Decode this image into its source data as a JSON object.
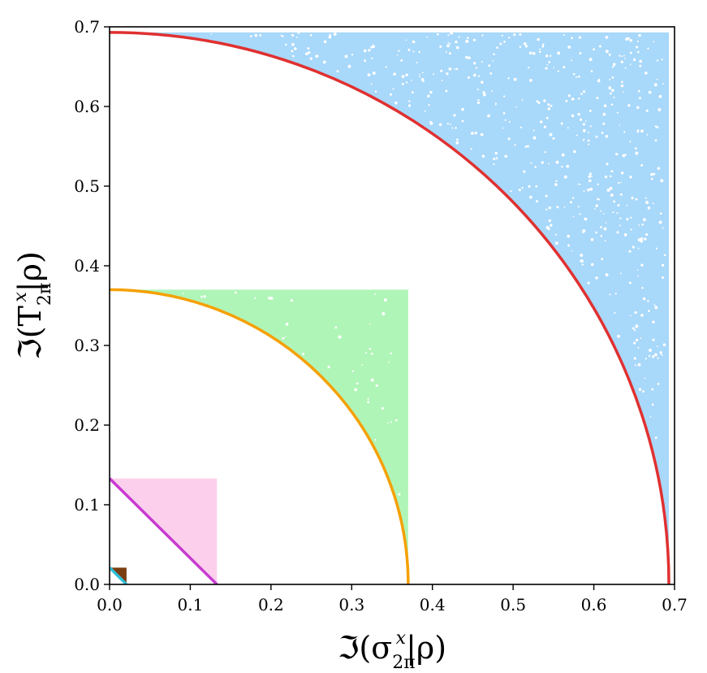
{
  "chart_data": {
    "type": "scatter",
    "xlabel": "ℑ(σ",
    "xlabel_sup": "x",
    "xlabel_sub": "2π",
    "xlabel_tail": "|ρ)",
    "ylabel": "ℑ(T",
    "ylabel_sup": "x",
    "ylabel_sub": "2π",
    "ylabel_tail": "|ρ)",
    "xlim": [
      0,
      0.7
    ],
    "ylim": [
      0,
      0.7
    ],
    "xticks": [
      "0.0",
      "0.1",
      "0.2",
      "0.3",
      "0.4",
      "0.5",
      "0.6",
      "0.7"
    ],
    "yticks": [
      "0.0",
      "0.1",
      "0.2",
      "0.3",
      "0.4",
      "0.5",
      "0.6",
      "0.7"
    ],
    "grid": false,
    "regions": [
      {
        "bound": 0.693,
        "fill": "#a8d8fa",
        "curve": "#e03030",
        "curve_shape": "arc"
      },
      {
        "bound": 0.37,
        "fill": "#b0f5b8",
        "curve": "#f5a000",
        "curve_shape": "arc"
      },
      {
        "bound": 0.133,
        "fill": "#fcd0ec",
        "curve": "#c83ad0",
        "curve_shape": "line"
      },
      {
        "bound": 0.021,
        "fill": "#7a3c10",
        "curve": "#30c0d8",
        "curve_shape": "line"
      }
    ]
  }
}
